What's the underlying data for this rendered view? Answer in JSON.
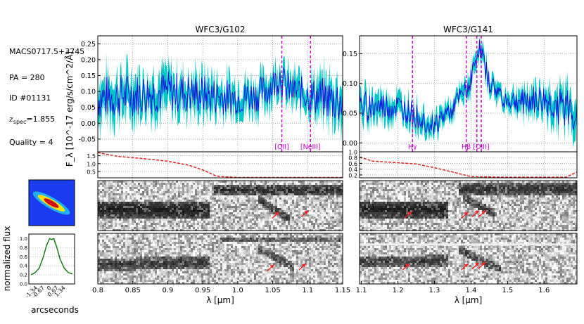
{
  "info": {
    "field": "MACS0717.5+3745",
    "pa": "PA = 280",
    "id": "ID #01131",
    "zspec_label": "z",
    "zspec_sub": "spec",
    "zspec_value": "=1.855",
    "quality": "Quality = 4"
  },
  "colors": {
    "spectrum": "#1010e0",
    "error_band": "#00c8c8",
    "lines": "#cc00cc",
    "contamination": "#e02020",
    "profile": "#1a7a1a",
    "arrows": "#ff2020"
  },
  "chart_data": [
    {
      "name": "g102-spectrum",
      "type": "line",
      "title": "WFC3/G102",
      "ylabel": "F_λ [10^-17 erg/s/cm^2/Å]",
      "xlim": [
        0.8,
        1.15
      ],
      "ylim": [
        -0.09,
        0.275
      ],
      "yticks": [
        "-0.05",
        "0.00",
        "0.05",
        "0.10",
        "0.15",
        "0.20",
        "0.25"
      ],
      "emission_lines": [
        {
          "label": "[OII]",
          "x": 1.063
        },
        {
          "label": "[NeIII]",
          "x": 1.104
        }
      ],
      "series": [
        {
          "name": "flux",
          "x": [
            0.8,
            0.85,
            0.9,
            0.95,
            1.0,
            1.03,
            1.05,
            1.06,
            1.07,
            1.08,
            1.1,
            1.12,
            1.15
          ],
          "values": [
            0.08,
            0.09,
            0.1,
            0.09,
            0.08,
            0.09,
            0.12,
            0.15,
            0.11,
            0.1,
            0.09,
            0.08,
            0.07
          ]
        },
        {
          "name": "error",
          "x": [
            0.8,
            0.95,
            1.0,
            1.1,
            1.15
          ],
          "values": [
            0.08,
            0.07,
            0.06,
            0.06,
            0.09
          ]
        }
      ]
    },
    {
      "name": "g141-spectrum",
      "type": "line",
      "title": "WFC3/G141",
      "xlim": [
        1.095,
        1.69
      ],
      "ylim": [
        -0.015,
        0.18
      ],
      "yticks": [
        "0.00",
        "0.05",
        "0.10",
        "0.15"
      ],
      "emission_lines": [
        {
          "label": "Hγ",
          "x": 1.24
        },
        {
          "label": "Hβ",
          "x": 1.387
        },
        {
          "label": "[OIII]",
          "x": 1.428
        }
      ],
      "extra_lines": [
        {
          "x": 1.416
        }
      ],
      "series": [
        {
          "name": "flux",
          "x": [
            1.1,
            1.2,
            1.3,
            1.35,
            1.39,
            1.41,
            1.42,
            1.43,
            1.45,
            1.5,
            1.6,
            1.69
          ],
          "values": [
            0.06,
            0.06,
            0.03,
            0.06,
            0.09,
            0.13,
            0.16,
            0.15,
            0.1,
            0.07,
            0.07,
            0.05
          ]
        },
        {
          "name": "error",
          "x": [
            1.1,
            1.3,
            1.5,
            1.69
          ],
          "values": [
            0.03,
            0.02,
            0.02,
            0.04
          ]
        }
      ]
    },
    {
      "name": "g102-contamination",
      "type": "line",
      "xlim": [
        0.8,
        1.15
      ],
      "ylim": [
        0.1,
        1.75
      ],
      "yticks": [
        "0.5",
        "1.0",
        "1.5"
      ],
      "series": [
        {
          "name": "contam",
          "x": [
            0.8,
            0.83,
            0.87,
            0.9,
            0.93,
            0.95,
            0.97,
            1.0,
            1.15
          ],
          "values": [
            1.7,
            1.45,
            1.3,
            1.15,
            0.9,
            0.6,
            0.2,
            0.12,
            0.12
          ]
        }
      ]
    },
    {
      "name": "g141-contamination",
      "type": "line",
      "xlim": [
        1.095,
        1.69
      ],
      "ylim": [
        0.1,
        1.0
      ],
      "yticks": [
        "0.2",
        "0.4",
        "0.6",
        "0.8",
        "1.0"
      ],
      "series": [
        {
          "name": "contam",
          "x": [
            1.1,
            1.13,
            1.2,
            1.25,
            1.3,
            1.35,
            1.4,
            1.5,
            1.66,
            1.69
          ],
          "values": [
            0.8,
            0.68,
            0.62,
            0.58,
            0.45,
            0.3,
            0.14,
            0.12,
            0.12,
            0.3
          ]
        }
      ]
    },
    {
      "name": "spatial-profile",
      "type": "line",
      "xlabel": "arcseconds",
      "ylabel": "normalized flux",
      "xticks": [
        "-1.34",
        "-0.67",
        "0",
        "0.67",
        "1.34"
      ],
      "yticks": [
        "0.0",
        "0.2",
        "0.4",
        "0.6",
        "0.8",
        "1.0"
      ],
      "series": [
        {
          "name": "profile",
          "x": [
            -2.0,
            -1.6,
            -1.2,
            -0.8,
            -0.5,
            -0.2,
            0,
            0.2,
            0.5,
            0.8,
            1.2,
            1.6,
            2.0
          ],
          "values": [
            0.2,
            0.25,
            0.35,
            0.6,
            0.85,
            1.0,
            0.98,
            1.0,
            0.8,
            0.55,
            0.35,
            0.25,
            0.22
          ]
        }
      ]
    },
    {
      "name": "g102-xaxis",
      "type": "axis",
      "xlabel": "λ [μm]",
      "xticks": [
        "0.8",
        "0.85",
        "0.9",
        "0.95",
        "1.0",
        "1.05",
        "1.1",
        "1.15"
      ]
    },
    {
      "name": "g141-xaxis",
      "type": "axis",
      "xlabel": "λ [μm]",
      "xticks": [
        "1.1",
        "1.2",
        "1.3",
        "1.4",
        "1.5",
        "1.6"
      ]
    }
  ]
}
